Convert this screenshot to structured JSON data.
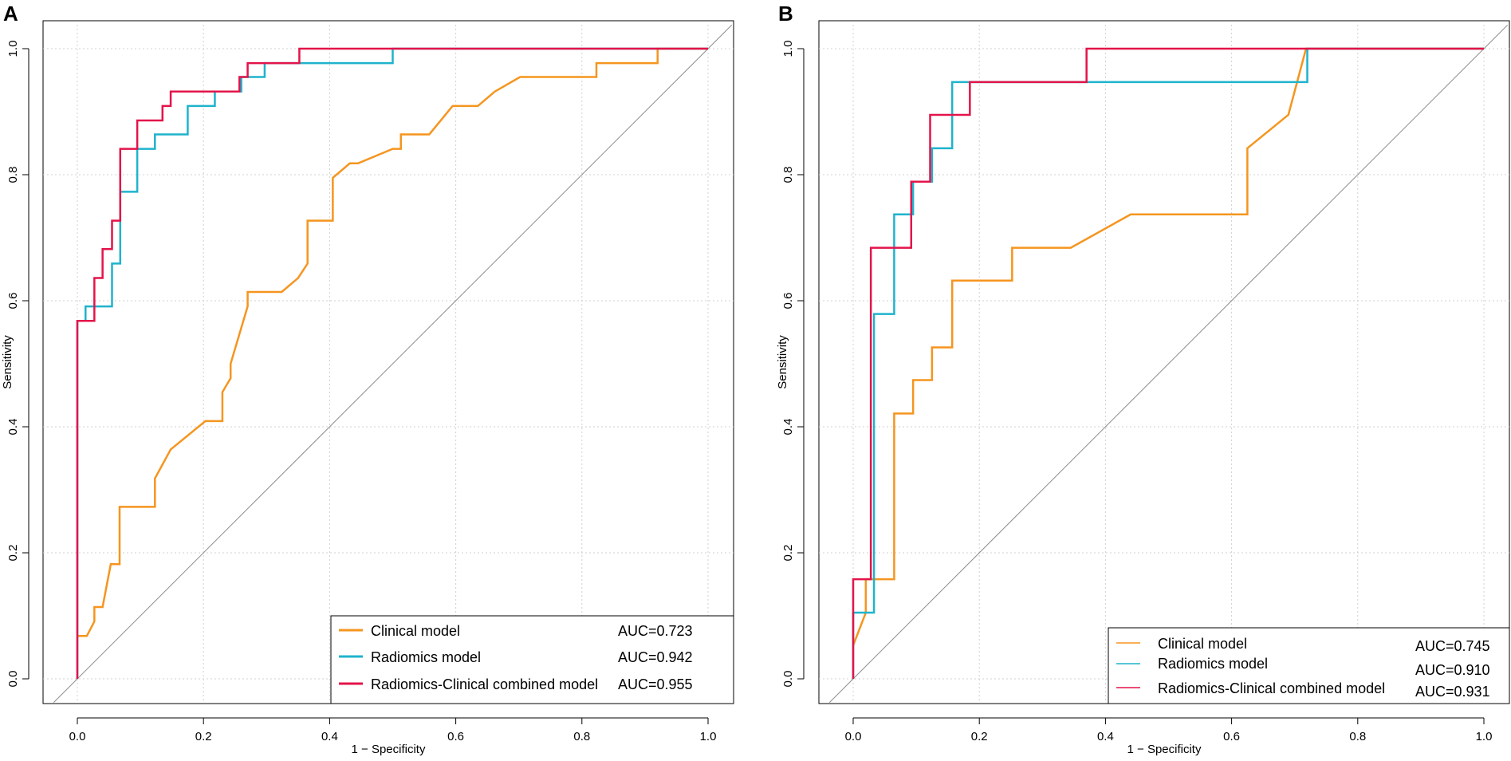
{
  "chart_data": [
    {
      "panel": "A",
      "type": "line",
      "xlabel": "1 − Specificity",
      "ylabel": "Sensitivity",
      "xlim": [
        0,
        1
      ],
      "ylim": [
        0,
        1
      ],
      "xticks": [
        "0.0",
        "0.2",
        "0.4",
        "0.6",
        "0.8",
        "1.0"
      ],
      "yticks": [
        "0.0",
        "0.2",
        "0.4",
        "0.6",
        "0.8",
        "1.0"
      ],
      "grid": true,
      "reference_line": "diagonal",
      "legend_position": "bottom-right",
      "series": [
        {
          "name": "Clinical model",
          "auc": "AUC=0.723",
          "color": "#f5951f",
          "points": [
            [
              0,
              0.068
            ],
            [
              0.015,
              0.068
            ],
            [
              0.027,
              0.091
            ],
            [
              0.027,
              0.114
            ],
            [
              0.04,
              0.114
            ],
            [
              0.053,
              0.182
            ],
            [
              0.067,
              0.182
            ],
            [
              0.067,
              0.273
            ],
            [
              0.123,
              0.273
            ],
            [
              0.123,
              0.318
            ],
            [
              0.148,
              0.364
            ],
            [
              0.203,
              0.409
            ],
            [
              0.23,
              0.409
            ],
            [
              0.23,
              0.455
            ],
            [
              0.243,
              0.477
            ],
            [
              0.243,
              0.5
            ],
            [
              0.27,
              0.591
            ],
            [
              0.27,
              0.614
            ],
            [
              0.324,
              0.614
            ],
            [
              0.35,
              0.636
            ],
            [
              0.365,
              0.659
            ],
            [
              0.365,
              0.727
            ],
            [
              0.405,
              0.727
            ],
            [
              0.405,
              0.795
            ],
            [
              0.432,
              0.818
            ],
            [
              0.445,
              0.818
            ],
            [
              0.5,
              0.841
            ],
            [
              0.513,
              0.841
            ],
            [
              0.513,
              0.864
            ],
            [
              0.558,
              0.864
            ],
            [
              0.595,
              0.909
            ],
            [
              0.635,
              0.909
            ],
            [
              0.662,
              0.932
            ],
            [
              0.702,
              0.955
            ],
            [
              0.823,
              0.955
            ],
            [
              0.823,
              0.977
            ],
            [
              0.92,
              0.977
            ],
            [
              0.92,
              1.0
            ],
            [
              1.0,
              1.0
            ]
          ]
        },
        {
          "name": "Radiomics model",
          "auc": "AUC=0.942",
          "color": "#1fb3cc",
          "points": [
            [
              0,
              0
            ],
            [
              0,
              0.568
            ],
            [
              0.013,
              0.568
            ],
            [
              0.013,
              0.591
            ],
            [
              0.055,
              0.591
            ],
            [
              0.055,
              0.659
            ],
            [
              0.068,
              0.659
            ],
            [
              0.068,
              0.773
            ],
            [
              0.095,
              0.773
            ],
            [
              0.095,
              0.841
            ],
            [
              0.123,
              0.841
            ],
            [
              0.123,
              0.864
            ],
            [
              0.175,
              0.864
            ],
            [
              0.175,
              0.909
            ],
            [
              0.218,
              0.909
            ],
            [
              0.218,
              0.932
            ],
            [
              0.26,
              0.932
            ],
            [
              0.26,
              0.955
            ],
            [
              0.297,
              0.955
            ],
            [
              0.297,
              0.977
            ],
            [
              0.5,
              0.977
            ],
            [
              0.5,
              1.0
            ],
            [
              1.0,
              1.0
            ]
          ]
        },
        {
          "name": "Radiomics-Clinical combined model",
          "auc": "AUC=0.955",
          "color": "#e3144a",
          "points": [
            [
              0,
              0
            ],
            [
              0,
              0.568
            ],
            [
              0.027,
              0.568
            ],
            [
              0.027,
              0.636
            ],
            [
              0.04,
              0.636
            ],
            [
              0.04,
              0.682
            ],
            [
              0.055,
              0.682
            ],
            [
              0.055,
              0.727
            ],
            [
              0.068,
              0.727
            ],
            [
              0.068,
              0.841
            ],
            [
              0.095,
              0.841
            ],
            [
              0.095,
              0.886
            ],
            [
              0.135,
              0.886
            ],
            [
              0.135,
              0.909
            ],
            [
              0.148,
              0.909
            ],
            [
              0.148,
              0.932
            ],
            [
              0.257,
              0.932
            ],
            [
              0.257,
              0.955
            ],
            [
              0.27,
              0.955
            ],
            [
              0.27,
              0.977
            ],
            [
              0.352,
              0.977
            ],
            [
              0.352,
              1.0
            ],
            [
              1.0,
              1.0
            ]
          ]
        }
      ]
    },
    {
      "panel": "B",
      "type": "line",
      "xlabel": "1 − Specificity",
      "ylabel": "Sensitivity",
      "xlim": [
        0,
        1
      ],
      "ylim": [
        0,
        1
      ],
      "xticks": [
        "0.0",
        "0.2",
        "0.4",
        "0.6",
        "0.8",
        "1.0"
      ],
      "yticks": [
        "0.0",
        "0.2",
        "0.4",
        "0.6",
        "0.8",
        "1.0"
      ],
      "grid": true,
      "reference_line": "diagonal",
      "legend_position": "bottom-right",
      "series": [
        {
          "name": "Clinical model",
          "auc": "AUC=0.745",
          "color": "#f5951f",
          "points": [
            [
              0,
              0.053
            ],
            [
              0.02,
              0.105
            ],
            [
              0.02,
              0.158
            ],
            [
              0.065,
              0.158
            ],
            [
              0.065,
              0.421
            ],
            [
              0.095,
              0.421
            ],
            [
              0.095,
              0.474
            ],
            [
              0.125,
              0.474
            ],
            [
              0.125,
              0.526
            ],
            [
              0.157,
              0.526
            ],
            [
              0.157,
              0.632
            ],
            [
              0.252,
              0.632
            ],
            [
              0.252,
              0.684
            ],
            [
              0.345,
              0.684
            ],
            [
              0.44,
              0.737
            ],
            [
              0.625,
              0.737
            ],
            [
              0.625,
              0.842
            ],
            [
              0.69,
              0.895
            ],
            [
              0.718,
              1.0
            ],
            [
              1.0,
              1.0
            ]
          ]
        },
        {
          "name": "Radiomics model",
          "auc": "AUC=0.910",
          "color": "#1fb3cc",
          "points": [
            [
              0,
              0
            ],
            [
              0,
              0.105
            ],
            [
              0.033,
              0.105
            ],
            [
              0.033,
              0.579
            ],
            [
              0.065,
              0.579
            ],
            [
              0.065,
              0.737
            ],
            [
              0.095,
              0.737
            ],
            [
              0.095,
              0.789
            ],
            [
              0.125,
              0.789
            ],
            [
              0.125,
              0.842
            ],
            [
              0.157,
              0.842
            ],
            [
              0.157,
              0.947
            ],
            [
              0.72,
              0.947
            ],
            [
              0.72,
              1.0
            ],
            [
              1.0,
              1.0
            ]
          ]
        },
        {
          "name": "Radiomics-Clinical combined model",
          "auc": "AUC=0.931",
          "color": "#e3144a",
          "points": [
            [
              0,
              0
            ],
            [
              0,
              0.158
            ],
            [
              0.028,
              0.158
            ],
            [
              0.028,
              0.684
            ],
            [
              0.092,
              0.684
            ],
            [
              0.092,
              0.789
            ],
            [
              0.122,
              0.789
            ],
            [
              0.122,
              0.895
            ],
            [
              0.185,
              0.895
            ],
            [
              0.185,
              0.947
            ],
            [
              0.37,
              0.947
            ],
            [
              0.37,
              1.0
            ],
            [
              1.0,
              1.0
            ]
          ]
        }
      ]
    }
  ]
}
